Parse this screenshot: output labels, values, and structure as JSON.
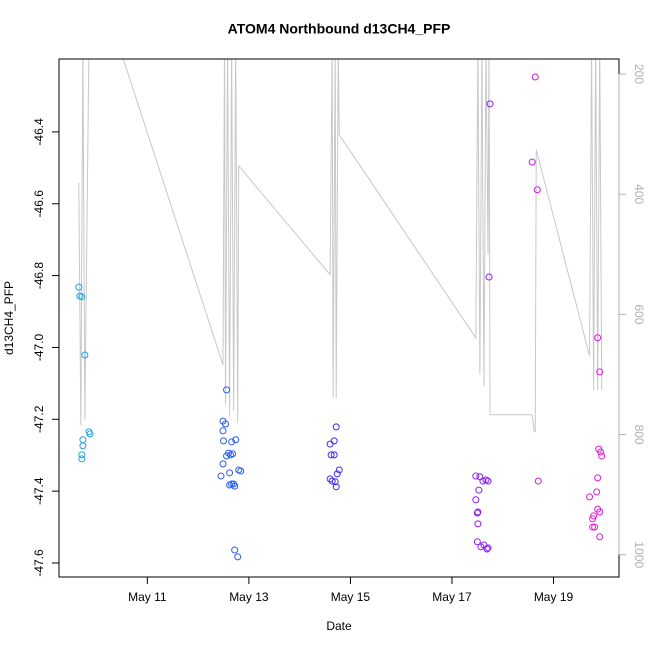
{
  "chart_data": {
    "type": "scatter",
    "title": "ATOM4 Northbound d13CH4_PFP",
    "x_label": "Date",
    "y_label": "d13CH4_PFP",
    "xlim": [
      9.26,
      20.29
    ],
    "xticks": [
      {
        "value": 11,
        "label": "May 11"
      },
      {
        "value": 13,
        "label": "May 13"
      },
      {
        "value": 15,
        "label": "May 15"
      },
      {
        "value": 17,
        "label": "May 17"
      },
      {
        "value": 19,
        "label": "May 19"
      }
    ],
    "ylim": [
      -47.639,
      -46.197
    ],
    "yticks": [
      -46.4,
      -46.6,
      -46.8,
      {
        "value": -47,
        "label": "-47.0"
      },
      -47.2,
      -47.4,
      -47.6
    ],
    "y2lim": [
      1037,
      175
    ],
    "y2ticks": [
      200,
      400,
      600,
      800,
      1000
    ],
    "series": [
      {
        "color": "#1ea4ea",
        "x": [
          9.65,
          9.67,
          9.71,
          9.77,
          9.73,
          9.73,
          9.71,
          9.71,
          9.85,
          9.87
        ],
        "values": [
          -46.832,
          -46.857,
          -46.859,
          -47.021,
          -47.257,
          -47.274,
          -47.299,
          -47.31,
          -47.235,
          -47.241
        ]
      },
      {
        "color": "#2a5cf0",
        "x": [
          12.56,
          12.49,
          12.54,
          12.49,
          12.5,
          12.68,
          12.74,
          12.66,
          12.6,
          12.64,
          12.56,
          12.49,
          12.84,
          12.45,
          12.8,
          12.62,
          12.66,
          12.62,
          12.7,
          12.72,
          12.72,
          12.78
        ],
        "values": [
          -47.118,
          -47.205,
          -47.213,
          -47.232,
          -47.26,
          -47.296,
          -47.257,
          -47.263,
          -47.294,
          -47.299,
          -47.302,
          -47.324,
          -47.344,
          -47.358,
          -47.341,
          -47.349,
          -47.38,
          -47.383,
          -47.38,
          -47.386,
          -47.564,
          -47.583
        ]
      },
      {
        "color": "#3a2cf2",
        "x": [
          14.72,
          14.68,
          14.6,
          14.62,
          14.68,
          14.78,
          14.74,
          14.6,
          14.64,
          14.7,
          14.72
        ],
        "values": [
          -47.221,
          -47.26,
          -47.269,
          -47.299,
          -47.299,
          -47.341,
          -47.352,
          -47.366,
          -47.372,
          -47.374,
          -47.388
        ]
      },
      {
        "color": "#8a1ef0",
        "x": [
          17.75,
          17.73,
          17.47,
          17.55,
          17.67,
          17.61,
          17.71,
          17.53,
          17.47,
          17.51,
          17.5,
          17.51,
          17.5,
          17.63,
          17.57,
          17.71,
          17.69
        ],
        "values": [
          -46.322,
          -46.804,
          -47.358,
          -47.36,
          -47.369,
          -47.372,
          -47.372,
          -47.397,
          -47.424,
          -47.458,
          -47.461,
          -47.491,
          -47.541,
          -47.55,
          -47.555,
          -47.558,
          -47.561
        ]
      },
      {
        "color": "#c21ee8",
        "x": [
          18.64,
          18.58,
          18.68,
          18.7
        ],
        "values": [
          -46.247,
          -46.484,
          -46.561,
          -47.372
        ]
      },
      {
        "color": "#e21ed8",
        "x": [
          19.87,
          19.91,
          19.89,
          19.93,
          19.95,
          19.87,
          19.85,
          19.71,
          19.87,
          19.91,
          19.79,
          19.77,
          19.81,
          19.77,
          19.91
        ],
        "values": [
          -46.973,
          -47.068,
          -47.283,
          -47.291,
          -47.302,
          -47.363,
          -47.402,
          -47.416,
          -47.45,
          -47.458,
          -47.469,
          -47.477,
          -47.5,
          -47.5,
          -47.527
        ]
      },
      {
        "type": "line",
        "axis": "y2",
        "color": "#c8c8c8",
        "x": [
          9.65,
          9.69,
          9.73,
          9.77,
          9.85,
          10.43,
          12.49,
          12.52,
          12.54,
          12.58,
          12.62,
          12.66,
          12.7,
          12.74,
          12.78,
          12.8,
          14.6,
          14.64,
          14.66,
          14.7,
          14.72,
          14.76,
          14.78,
          17.47,
          17.51,
          17.55,
          17.59,
          17.63,
          17.67,
          17.71,
          17.73,
          17.75,
          18.58,
          18.62,
          18.64,
          18.66,
          19.71,
          19.75,
          19.79,
          19.83,
          19.87,
          19.91,
          19.95
        ],
        "values": [
          381,
          784,
          150,
          775,
          150,
          150,
          684,
          150,
          750,
          150,
          770,
          150,
          760,
          150,
          780,
          353,
          534,
          150,
          739,
          150,
          739,
          150,
          301,
          639,
          150,
          700,
          150,
          720,
          150,
          500,
          150,
          767,
          767,
          795,
          795,
          326,
          669,
          150,
          726,
          150,
          726,
          150,
          726
        ]
      }
    ]
  }
}
